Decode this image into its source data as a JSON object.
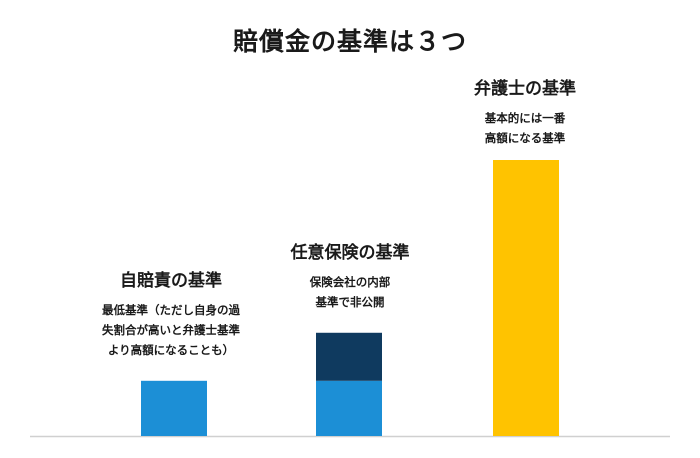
{
  "title": "賠償金の基準は３つ",
  "colors": {
    "jibaiseki": "#1c8fd6",
    "nini_base": "#1c8fd6",
    "nini_extra": "#0f3a5f",
    "bengoshi": "#ffc300",
    "baseline": "#d0d0d0"
  },
  "groups": [
    {
      "heading": "自賠責の基準",
      "description_lines": [
        "最低基準（ただし自身の過",
        "失割合が高いと弁護士基準",
        "より高額になることも）"
      ]
    },
    {
      "heading": "任意保険の基準",
      "description_lines": [
        "保険会社の内部",
        "基準で非公開"
      ]
    },
    {
      "heading": "弁護士の基準",
      "description_lines": [
        "基本的には一番",
        "高額になる基準"
      ]
    }
  ],
  "chart_data": {
    "type": "bar",
    "stacked": true,
    "title": "賠償金の基準は３つ",
    "categories": [
      "自賠責の基準",
      "任意保険の基準",
      "弁護士の基準"
    ],
    "series": [
      {
        "values": [
          1.0,
          1.0,
          5.0
        ],
        "colors": [
          "#1c8fd6",
          "#1c8fd6",
          "#ffc300"
        ]
      },
      {
        "values": [
          0,
          0.87,
          0
        ],
        "colors": [
          "#1c8fd6",
          "#0f3a5f",
          "#ffc300"
        ]
      }
    ],
    "ylim": [
      0,
      5.0
    ],
    "axes_visible": false,
    "grid": false,
    "legend": "none"
  }
}
